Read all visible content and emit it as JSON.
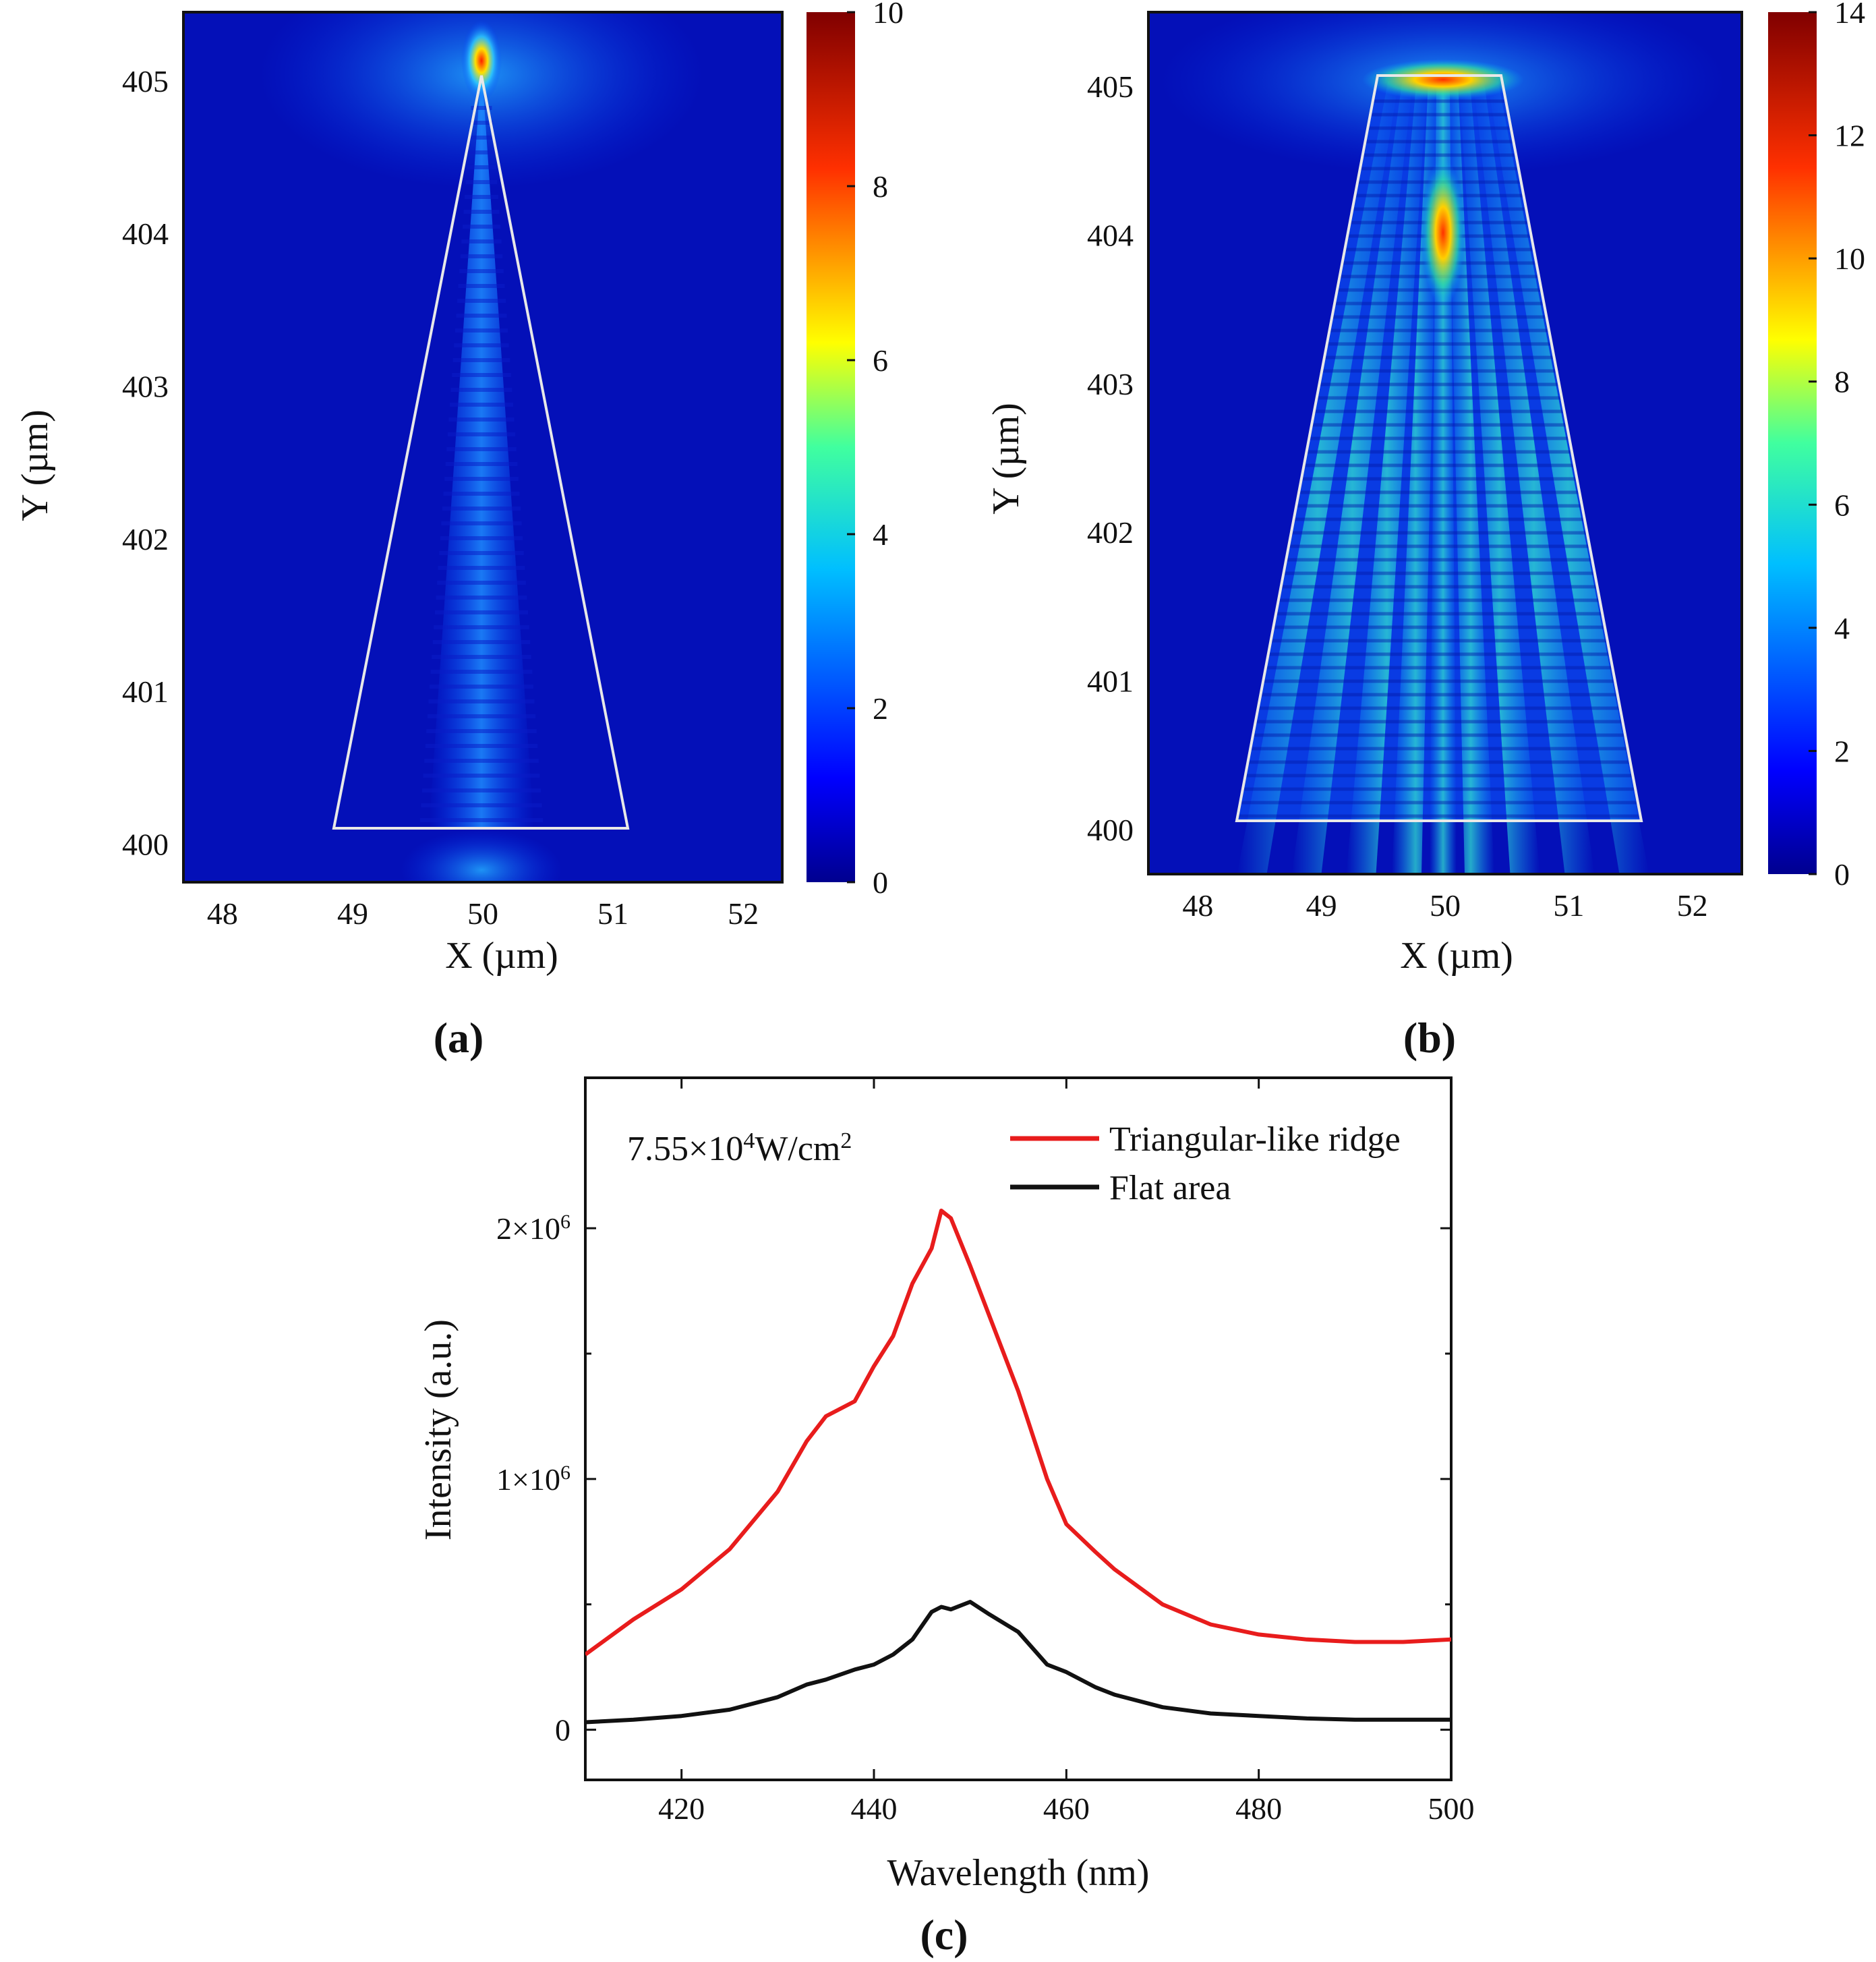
{
  "chart_data": [
    {
      "panel": "(a)",
      "type": "heatmap",
      "xlabel": "X (µm)",
      "ylabel": "Y (µm)",
      "xlim": [
        47.7,
        52.3
      ],
      "ylim": [
        399.75,
        405.45
      ],
      "x_ticks": [
        "48",
        "49",
        "50",
        "51",
        "52"
      ],
      "y_ticks": [
        "400",
        "401",
        "402",
        "403",
        "404",
        "405"
      ],
      "colorbar": {
        "min": 0,
        "max": 10,
        "ticks": [
          "0",
          "2",
          "4",
          "6",
          "8",
          "10"
        ]
      },
      "structure_outline": {
        "shape": "triangle",
        "apex": [
          50,
          405.1
        ],
        "base_left": [
          48.9,
          400.0
        ],
        "base_right": [
          51.1,
          400.0
        ]
      },
      "hotspots": [
        {
          "x": 50,
          "y": 405.1,
          "value": 10
        }
      ]
    },
    {
      "panel": "(b)",
      "type": "heatmap",
      "xlabel": "X (µm)",
      "ylabel": "Y (µm)",
      "xlim": [
        47.6,
        52.4
      ],
      "ylim": [
        399.7,
        405.5
      ],
      "x_ticks": [
        "48",
        "49",
        "50",
        "51",
        "52"
      ],
      "y_ticks": [
        "400",
        "401",
        "402",
        "403",
        "404",
        "405"
      ],
      "colorbar": {
        "min": 0,
        "max": 14,
        "ticks": [
          "0",
          "2",
          "4",
          "6",
          "8",
          "10",
          "12",
          "14"
        ]
      },
      "structure_outline": {
        "shape": "trapezoid",
        "top_left": [
          49.5,
          405.05
        ],
        "top_right": [
          50.5,
          405.05
        ],
        "base_left": [
          48.3,
          400.05
        ],
        "base_right": [
          51.6,
          400.05
        ]
      },
      "hotspots": [
        {
          "x": 50,
          "y": 404.0,
          "value": 11
        },
        {
          "x": 49.6,
          "y": 405.0,
          "value": 13
        },
        {
          "x": 50.4,
          "y": 405.0,
          "value": 13
        }
      ]
    },
    {
      "panel": "(c)",
      "type": "line",
      "xlabel": "Wavelength (nm)",
      "ylabel": "Intensity (a.u.)",
      "xlim": [
        410,
        500
      ],
      "ylim": [
        -200000,
        2600000
      ],
      "x_ticks": [
        "420",
        "440",
        "460",
        "480",
        "500"
      ],
      "y_ticks": [
        {
          "value": 0,
          "mantissa": "0",
          "exp": ""
        },
        {
          "value": 1000000,
          "mantissa": "1×10",
          "exp": "6"
        },
        {
          "value": 2000000,
          "mantissa": "2×10",
          "exp": "6"
        }
      ],
      "annotation": {
        "base": "7.55×10",
        "exp": "4",
        "unit": "W/cm",
        "unit_exp": "2"
      },
      "x": [
        410,
        415,
        420,
        425,
        430,
        433,
        435,
        438,
        440,
        442,
        444,
        446,
        447,
        448,
        450,
        452,
        455,
        458,
        460,
        463,
        465,
        470,
        475,
        480,
        485,
        490,
        495,
        500
      ],
      "series": [
        {
          "name": "Triangular-like ridge",
          "color": "#e81c1c",
          "values": [
            300000,
            440000,
            560000,
            720000,
            950000,
            1150000,
            1250000,
            1310000,
            1450000,
            1570000,
            1780000,
            1920000,
            2070000,
            2040000,
            1850000,
            1650000,
            1350000,
            1000000,
            820000,
            710000,
            640000,
            500000,
            420000,
            380000,
            360000,
            350000,
            350000,
            360000
          ]
        },
        {
          "name": "Flat area",
          "color": "#111111",
          "values": [
            30000,
            40000,
            55000,
            80000,
            130000,
            180000,
            200000,
            240000,
            260000,
            300000,
            360000,
            470000,
            490000,
            480000,
            510000,
            460000,
            390000,
            260000,
            230000,
            170000,
            140000,
            90000,
            65000,
            55000,
            45000,
            40000,
            40000,
            40000
          ]
        }
      ]
    }
  ]
}
